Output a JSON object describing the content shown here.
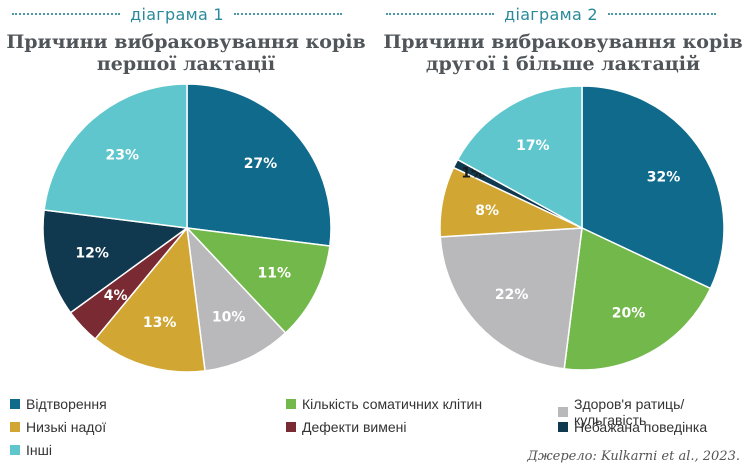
{
  "colors": {
    "reproduction": "#0f6a8b",
    "somatic": "#72b84b",
    "hoof": "#b9b9bb",
    "low_yield": "#d1a632",
    "udder": "#7a2a32",
    "behavior": "#10384e",
    "other": "#5ec6cc"
  },
  "legend": [
    {
      "label": "Відтворення",
      "color_key": "reproduction"
    },
    {
      "label": "Кількість соматичних клітин",
      "color_key": "somatic"
    },
    {
      "label": "Здоров'я ратиць/кульгавість",
      "color_key": "hoof"
    },
    {
      "label": "Низькі надої",
      "color_key": "low_yield"
    },
    {
      "label": "Дефекти вимені",
      "color_key": "udder"
    },
    {
      "label": "Небажана поведінка",
      "color_key": "behavior"
    },
    {
      "label": "Інші",
      "color_key": "other"
    }
  ],
  "source": "Джерело: Kulkarni et al., 2023.",
  "chart_data": [
    {
      "type": "pie",
      "panel_label": "діаграма 1",
      "title_lines": [
        "Причини вибраковування корів",
        "першої лактації"
      ],
      "slices": [
        {
          "category": "reproduction",
          "value": 27,
          "label": "27%"
        },
        {
          "category": "somatic",
          "value": 11,
          "label": "11%"
        },
        {
          "category": "hoof",
          "value": 10,
          "label": "10%"
        },
        {
          "category": "low_yield",
          "value": 13,
          "label": "13%"
        },
        {
          "category": "udder",
          "value": 4,
          "label": "4%"
        },
        {
          "category": "behavior",
          "value": 12,
          "label": "12%"
        },
        {
          "category": "other",
          "value": 23,
          "label": "23%"
        }
      ]
    },
    {
      "type": "pie",
      "panel_label": "діаграма 2",
      "title_lines": [
        "Причини вибраковування корів",
        "другої і більше лактацій"
      ],
      "slices": [
        {
          "category": "reproduction",
          "value": 32,
          "label": "32%"
        },
        {
          "category": "somatic",
          "value": 20,
          "label": "20%"
        },
        {
          "category": "hoof",
          "value": 22,
          "label": "22%"
        },
        {
          "category": "low_yield",
          "value": 8,
          "label": "8%"
        },
        {
          "category": "behavior",
          "value": 1,
          "label": "1%"
        },
        {
          "category": "other",
          "value": 17,
          "label": "17%"
        }
      ]
    }
  ]
}
